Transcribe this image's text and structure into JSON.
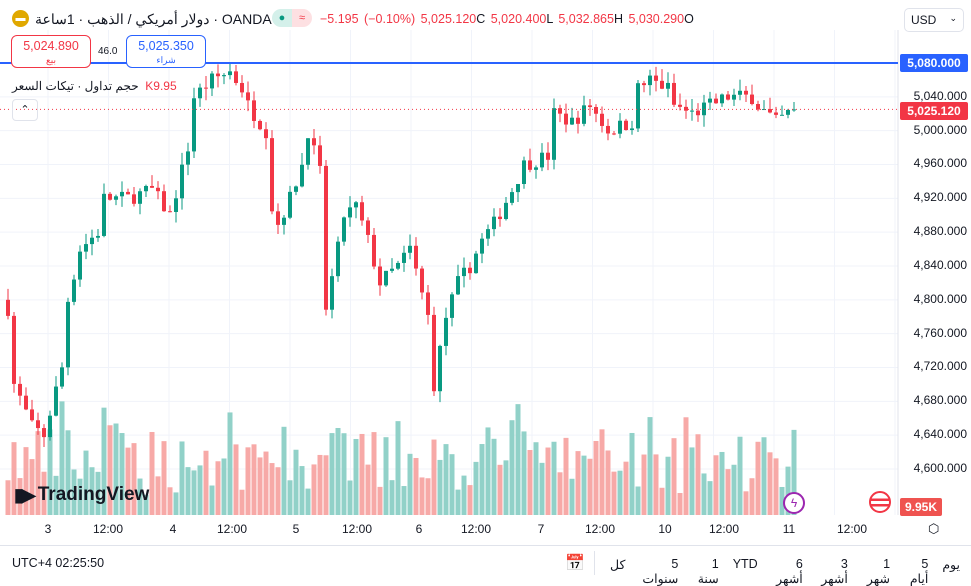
{
  "header": {
    "title": "دولار أمريكي / الذهب · 1ساعة · OANDA",
    "change": "−5.195 (−0.10%)",
    "close": "5,025.120",
    "close_tag": "C",
    "low": "5,020.400",
    "low_tag": "L",
    "high": "5,032.865",
    "high_tag": "H",
    "open": "5,030.290",
    "open_tag": "O",
    "currency": "USD",
    "logo_icon": "gold-bars-icon"
  },
  "trade": {
    "sell_price": "5,024.890",
    "sell_label": "بيع",
    "spread": "46.0",
    "buy_price": "5,025.350",
    "buy_label": "شراء"
  },
  "volume_legend": {
    "label": "حجم تداول · تيكات السعر",
    "value": "K9.95"
  },
  "price_axis": {
    "ticks": [
      "5,040.000",
      "5,000.000",
      "4,960.000",
      "4,920.000",
      "4,880.000",
      "4,840.000",
      "4,800.000",
      "4,760.000",
      "4,720.000",
      "4,680.000",
      "4,640.000",
      "4,600.000"
    ],
    "tick_values": [
      5040,
      5000,
      4960,
      4920,
      4880,
      4840,
      4800,
      4760,
      4720,
      4680,
      4640,
      4600
    ],
    "alert_price": "5,080.000",
    "alert_value": 5080,
    "last_price": "5,025.120",
    "last_value": 5025.12,
    "volume_tag": "9.95K"
  },
  "time_axis": [
    "3",
    "12:00",
    "4",
    "12:00",
    "5",
    "12:00",
    "6",
    "12:00",
    "7",
    "12:00",
    "10",
    "12:00",
    "11",
    "12:00"
  ],
  "footer": {
    "clock": "UTC+4 02:25:50",
    "ranges": [
      "يوم",
      "5 أيام",
      "1 شهر",
      "3 أشهر",
      "6 أشهر",
      "YTD",
      "1 سنة",
      "5 سنوات",
      "كل"
    ]
  },
  "branding": "TradingView",
  "colors": {
    "up": "#089981",
    "down": "#f23645",
    "alert": "#2962ff",
    "vol_up": "#91d1c8",
    "vol_down": "#f7a9a7"
  },
  "chart_data": {
    "type": "candlestick",
    "close_path": [
      [
        0,
        4790
      ],
      [
        1,
        4700
      ],
      [
        4,
        4650
      ],
      [
        6,
        4640
      ],
      [
        9,
        4720
      ],
      [
        10,
        4800
      ],
      [
        12,
        4860
      ],
      [
        15,
        4880
      ],
      [
        16,
        4920
      ],
      [
        20,
        4920
      ],
      [
        24,
        4930
      ],
      [
        27,
        4900
      ],
      [
        30,
        4980
      ],
      [
        31,
        5040
      ],
      [
        34,
        5060
      ],
      [
        37,
        5070
      ],
      [
        39,
        5050
      ],
      [
        40,
        5030
      ],
      [
        43,
        5000
      ],
      [
        44,
        4910
      ],
      [
        45,
        4890
      ],
      [
        47,
        4920
      ],
      [
        49,
        4960
      ],
      [
        50,
        5000
      ],
      [
        52,
        4950
      ],
      [
        53,
        4790
      ],
      [
        55,
        4860
      ],
      [
        56,
        4900
      ],
      [
        58,
        4910
      ],
      [
        60,
        4870
      ],
      [
        62,
        4820
      ],
      [
        65,
        4840
      ],
      [
        67,
        4860
      ],
      [
        70,
        4780
      ],
      [
        71,
        4700
      ],
      [
        73,
        4780
      ],
      [
        75,
        4820
      ],
      [
        77,
        4840
      ],
      [
        79,
        4870
      ],
      [
        81,
        4890
      ],
      [
        84,
        4930
      ],
      [
        86,
        4960
      ],
      [
        90,
        4970
      ],
      [
        91,
        5020
      ],
      [
        94,
        5010
      ],
      [
        97,
        5030
      ],
      [
        100,
        5000
      ],
      [
        104,
        5010
      ],
      [
        105,
        5050
      ],
      [
        107,
        5060
      ],
      [
        110,
        5050
      ],
      [
        111,
        5030
      ],
      [
        114,
        5020
      ],
      [
        117,
        5030
      ],
      [
        120,
        5040
      ],
      [
        124,
        5040
      ],
      [
        125,
        5030
      ],
      [
        128,
        5010
      ],
      [
        131,
        5025
      ]
    ]
  }
}
